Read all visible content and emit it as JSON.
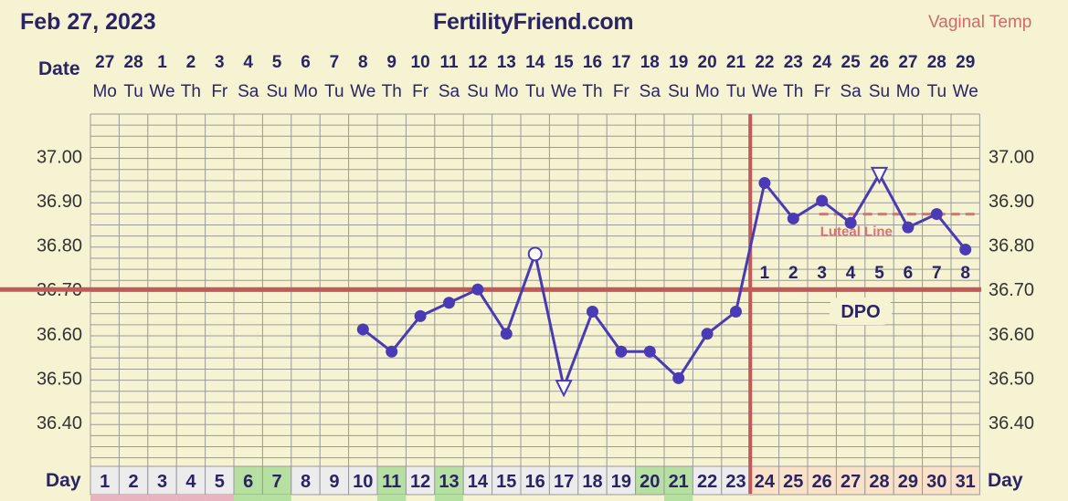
{
  "header": {
    "date": "Feb 27, 2023",
    "site": "FertilityFriend.com",
    "temp_type": "Vaginal Temp"
  },
  "labels": {
    "date_row": "Date",
    "day_row": "Day"
  },
  "colors": {
    "background": "#f5f3d2",
    "grid": "#9a9a9a",
    "line": "#4a3bb5",
    "coverline": "#c25a5a",
    "luteal": "#e07070",
    "text": "#2a2466",
    "cell_default": "#ececec",
    "cell_green": "#b6e0a2",
    "cell_peach": "#f9e2c8",
    "cell_pink": "#e7b4c0"
  },
  "chart_data": {
    "type": "line",
    "y_ticks": [
      "37.00",
      "36.90",
      "36.80",
      "36.70",
      "36.60",
      "36.50",
      "36.40"
    ],
    "ylim": [
      36.3,
      37.1
    ],
    "dates": [
      "27",
      "28",
      "1",
      "2",
      "3",
      "4",
      "5",
      "6",
      "7",
      "8",
      "9",
      "10",
      "11",
      "12",
      "13",
      "14",
      "15",
      "16",
      "17",
      "18",
      "19",
      "20",
      "21",
      "22",
      "23",
      "24",
      "25",
      "26",
      "27",
      "28",
      "29"
    ],
    "weekdays": [
      "Mo",
      "Tu",
      "We",
      "Th",
      "Fr",
      "Sa",
      "Su",
      "Mo",
      "Tu",
      "We",
      "Th",
      "Fr",
      "Sa",
      "Su",
      "Mo",
      "Tu",
      "We",
      "Th",
      "Fr",
      "Sa",
      "Su",
      "Mo",
      "Tu",
      "We",
      "Th",
      "Fr",
      "Sa",
      "Su",
      "Mo",
      "Tu",
      "We"
    ],
    "days": [
      "1",
      "2",
      "3",
      "4",
      "5",
      "6",
      "7",
      "8",
      "9",
      "10",
      "11",
      "12",
      "13",
      "14",
      "15",
      "16",
      "17",
      "18",
      "19",
      "20",
      "21",
      "22",
      "23",
      "24",
      "25",
      "26",
      "27",
      "28",
      "29",
      "30",
      "31"
    ],
    "day_cell_colors": [
      "default",
      "default",
      "default",
      "default",
      "default",
      "green",
      "green",
      "default",
      "default",
      "default",
      "green",
      "default",
      "green",
      "default",
      "default",
      "default",
      "default",
      "default",
      "default",
      "green",
      "green",
      "default",
      "default",
      "peach",
      "peach",
      "peach",
      "peach",
      "peach",
      "peach",
      "peach",
      "peach"
    ],
    "bottom_strip_colors": [
      "pink",
      "pink",
      "pink",
      "pink",
      "pink",
      "green",
      "green",
      "none",
      "none",
      "none",
      "green",
      "none",
      "green",
      "none",
      "none",
      "none",
      "none",
      "none",
      "none",
      "none",
      "green",
      "none",
      "none",
      "none",
      "none",
      "none",
      "none",
      "none",
      "none",
      "none",
      "none"
    ],
    "temperatures": [
      {
        "day": 10,
        "value": 36.61,
        "marker": "filled"
      },
      {
        "day": 11,
        "value": 36.56,
        "marker": "filled"
      },
      {
        "day": 12,
        "value": 36.64,
        "marker": "filled"
      },
      {
        "day": 13,
        "value": 36.67,
        "marker": "filled"
      },
      {
        "day": 14,
        "value": 36.7,
        "marker": "filled"
      },
      {
        "day": 15,
        "value": 36.6,
        "marker": "filled"
      },
      {
        "day": 16,
        "value": 36.78,
        "marker": "open-circle"
      },
      {
        "day": 17,
        "value": 36.48,
        "marker": "open-triangle"
      },
      {
        "day": 18,
        "value": 36.65,
        "marker": "filled"
      },
      {
        "day": 19,
        "value": 36.56,
        "marker": "filled"
      },
      {
        "day": 20,
        "value": 36.56,
        "marker": "filled"
      },
      {
        "day": 21,
        "value": 36.5,
        "marker": "filled"
      },
      {
        "day": 22,
        "value": 36.6,
        "marker": "filled"
      },
      {
        "day": 23,
        "value": 36.65,
        "marker": "filled"
      },
      {
        "day": 24,
        "value": 36.94,
        "marker": "filled"
      },
      {
        "day": 25,
        "value": 36.86,
        "marker": "filled"
      },
      {
        "day": 26,
        "value": 36.9,
        "marker": "filled"
      },
      {
        "day": 27,
        "value": 36.85,
        "marker": "filled"
      },
      {
        "day": 28,
        "value": 36.96,
        "marker": "open-triangle"
      },
      {
        "day": 29,
        "value": 36.84,
        "marker": "filled"
      },
      {
        "day": 30,
        "value": 36.87,
        "marker": "filled"
      },
      {
        "day": 31,
        "value": 36.79,
        "marker": "filled"
      }
    ],
    "coverline": 36.7,
    "ovulation_line_after_day": 23,
    "luteal_line": {
      "value": 36.87,
      "from_day": 26,
      "to_day": 31,
      "label": "Luteal Line"
    },
    "dpo": {
      "label": "DPO",
      "start_day": 24,
      "numbers": [
        "1",
        "2",
        "3",
        "4",
        "5",
        "6",
        "7",
        "8"
      ]
    }
  }
}
